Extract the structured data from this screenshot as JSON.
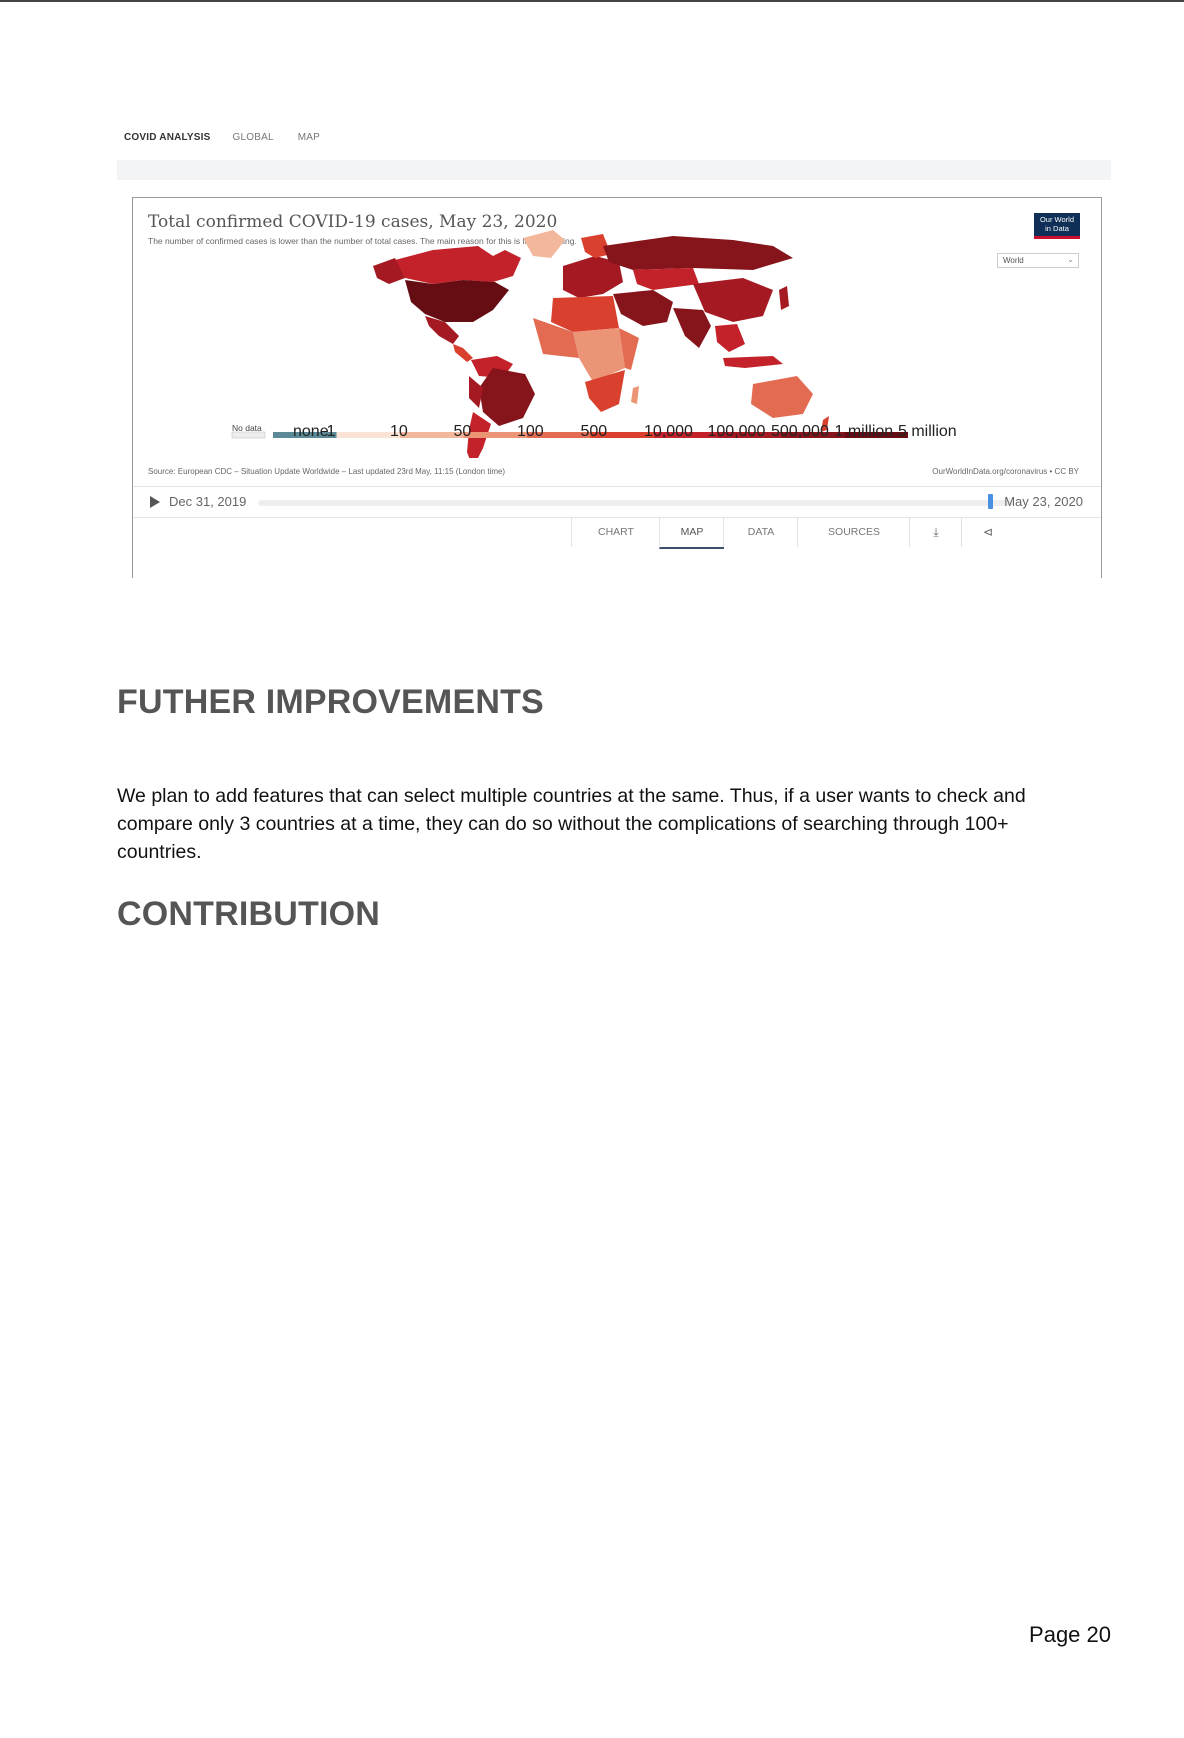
{
  "app": {
    "nav": {
      "brand": "COVID ANALYSIS",
      "items": [
        "GLOBAL",
        "MAP"
      ]
    }
  },
  "chart": {
    "title": "Total confirmed COVID-19 cases, May 23, 2020",
    "subtitle": "The number of confirmed cases is lower than the number of total cases. The main reason for this is limited testing.",
    "logo_line1": "Our World",
    "logo_line2": "in Data",
    "region_select": {
      "value": "World"
    },
    "legend": {
      "no_data_label": "No data",
      "labels": [
        "none",
        "1",
        "10",
        "50",
        "100",
        "500",
        "10,000",
        "100,000",
        "500,000",
        "1 million",
        "5 million"
      ],
      "colors": [
        "#5b8a96",
        "#fbe3d6",
        "#f3b89c",
        "#ec9576",
        "#e36b51",
        "#d9402e",
        "#c4222a",
        "#a51a22",
        "#86141b",
        "#650d13"
      ]
    },
    "source": "Source: European CDC – Situation Update Worldwide – Last updated 23rd May, 11:15 (London time)",
    "source_url": "OurWorldInData.org/coronavirus • CC BY",
    "timeline": {
      "start": "Dec 31, 2019",
      "end": "May 23, 2020",
      "position": 0.97
    },
    "tabs": [
      "CHART",
      "MAP",
      "DATA",
      "SOURCES"
    ],
    "active_tab": "MAP",
    "icons": [
      "download-icon",
      "share-icon"
    ]
  },
  "doc": {
    "heading_improvements": "FUTHER IMPROVEMENTS",
    "paragraph": "We plan to add features that can select multiple countries at the same. Thus, if a user wants to check and compare only 3 countries at a time, they can do so without the complications of searching through 100+ countries.",
    "heading_contribution": "CONTRIBUTION",
    "page_number": "Page 20"
  }
}
